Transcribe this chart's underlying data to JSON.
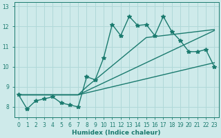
{
  "xlabel": "Humidex (Indice chaleur)",
  "bg_color": "#ceeaea",
  "grid_color": "#b0d8d8",
  "line_color": "#1a7a6e",
  "xlim": [
    -0.5,
    23.5
  ],
  "ylim": [
    7.5,
    13.2
  ],
  "xticks": [
    0,
    1,
    2,
    3,
    4,
    5,
    6,
    7,
    8,
    9,
    10,
    11,
    12,
    13,
    14,
    15,
    16,
    17,
    18,
    19,
    20,
    21,
    22,
    23
  ],
  "yticks": [
    8,
    9,
    10,
    11,
    12,
    13
  ],
  "series_zigzag": [
    8.6,
    7.9,
    8.3,
    8.4,
    8.5,
    8.2,
    8.1,
    8.0,
    9.5,
    9.35,
    10.45,
    12.1,
    11.55,
    12.5,
    12.05,
    12.1,
    11.55,
    12.5,
    11.75,
    11.3,
    10.75,
    10.75,
    10.85,
    10.0
  ],
  "series_line1": [
    8.6,
    8.6,
    8.6,
    8.6,
    8.6,
    8.6,
    8.6,
    8.6,
    9.0,
    9.35,
    9.7,
    10.05,
    10.4,
    10.75,
    11.1,
    11.45,
    11.5,
    11.55,
    11.6,
    11.65,
    11.7,
    11.75,
    11.8,
    11.85
  ],
  "series_line2": [
    8.6,
    8.6,
    8.6,
    8.6,
    8.6,
    8.6,
    8.6,
    8.6,
    8.8,
    9.0,
    9.2,
    9.4,
    9.6,
    9.8,
    10.0,
    10.2,
    10.4,
    10.6,
    10.8,
    11.0,
    11.2,
    11.4,
    11.6,
    11.8
  ],
  "series_line3": [
    8.6,
    8.6,
    8.6,
    8.6,
    8.6,
    8.6,
    8.6,
    8.6,
    8.7,
    8.8,
    8.9,
    9.0,
    9.1,
    9.2,
    9.3,
    9.4,
    9.5,
    9.6,
    9.7,
    9.8,
    9.9,
    10.0,
    10.1,
    10.2
  ],
  "marker_size": 4,
  "linewidth": 1.0,
  "tick_fontsize": 5.5,
  "xlabel_fontsize": 6.5
}
